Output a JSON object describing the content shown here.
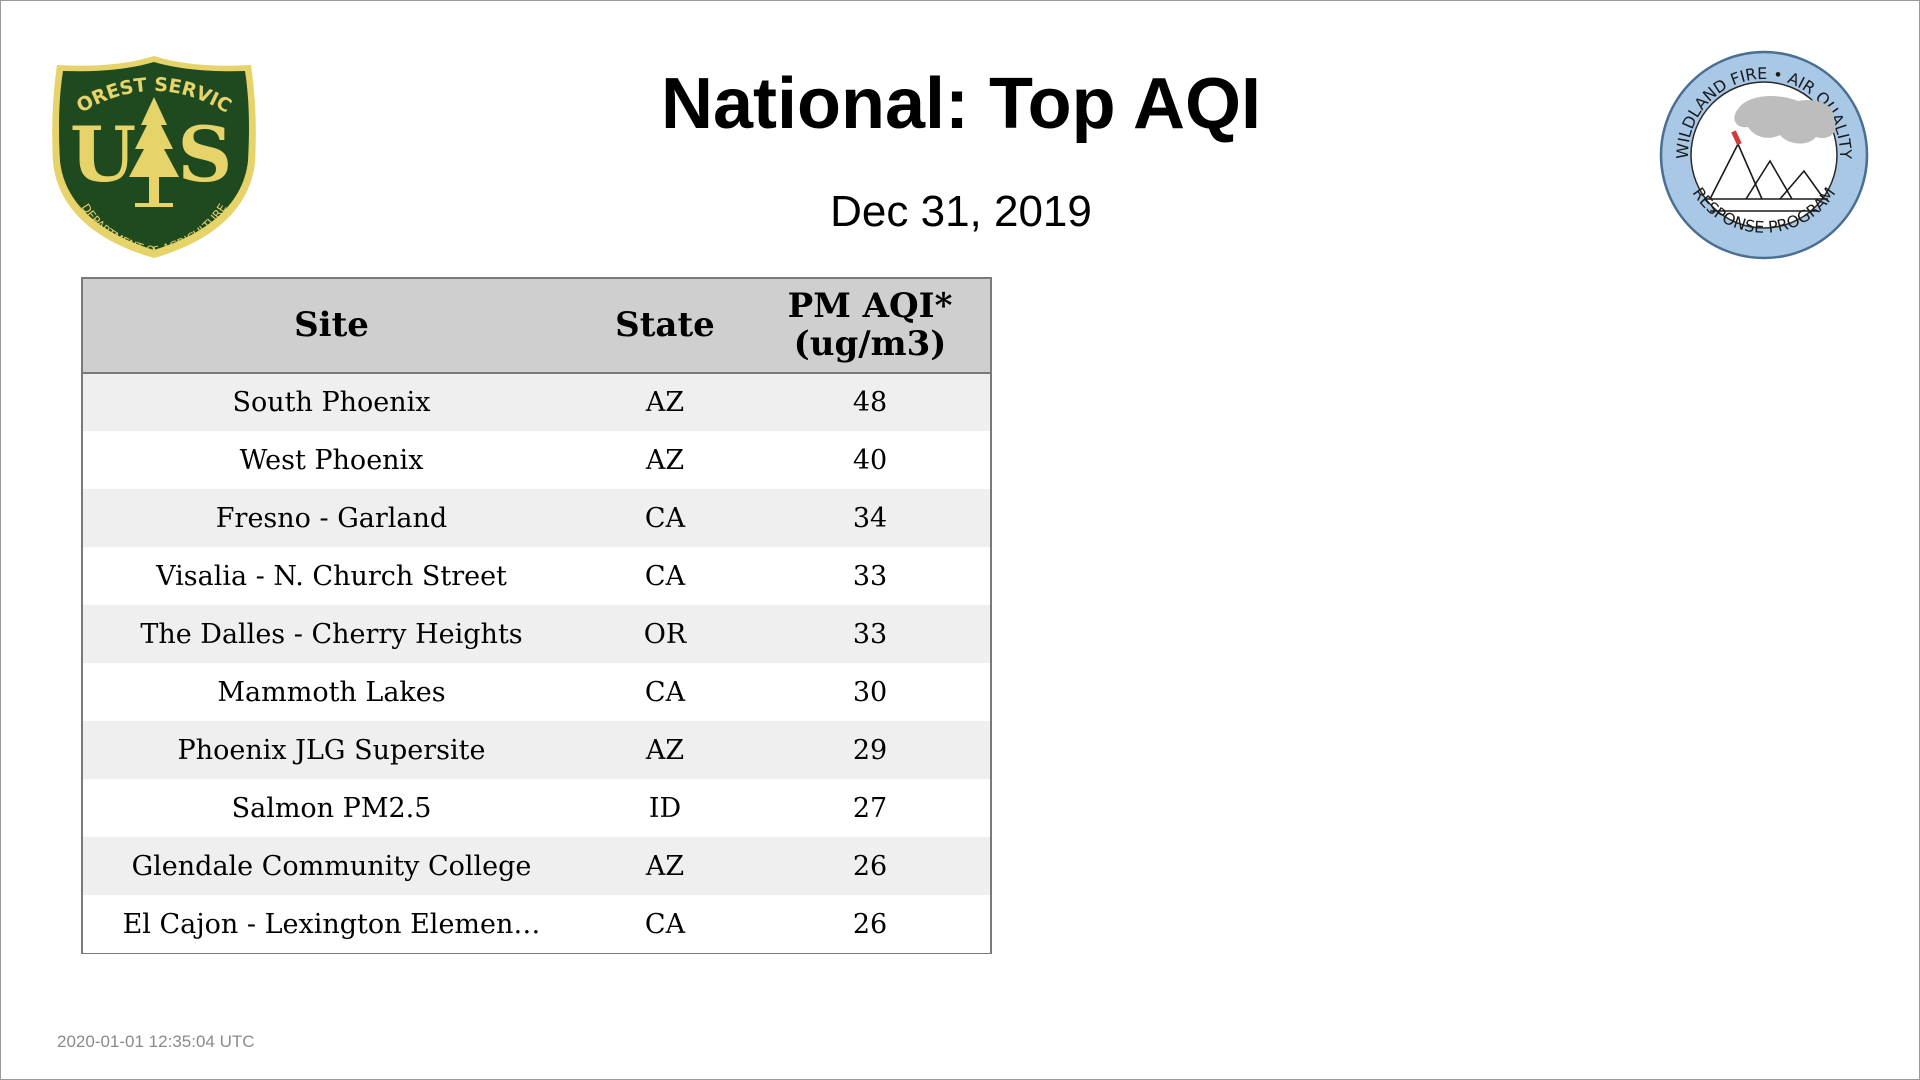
{
  "header": {
    "title": "National: Top AQI",
    "date": "Dec 31, 2019"
  },
  "logos": {
    "left": {
      "top_text": "FOREST SERVICE",
      "letters": [
        "U",
        "S"
      ],
      "bottom_text": "DEPARTMENT OF AGRICULTURE",
      "colors": {
        "shield": "#1f4a1f",
        "gold": "#e6d36a"
      }
    },
    "right": {
      "top_text": "WILDLAND FIRE • AIR QUALITY",
      "bottom_text": "RESPONSE PROGRAM",
      "colors": {
        "ring": "#a9c8e6",
        "smoke": "#bdbdbd",
        "flag": "#d43a3a"
      }
    }
  },
  "table": {
    "columns": [
      "Site",
      "State",
      "PM AQI*",
      "(ug/m3)"
    ],
    "rows": [
      {
        "site": "South Phoenix",
        "state": "AZ",
        "aqi": "48"
      },
      {
        "site": "West Phoenix",
        "state": "AZ",
        "aqi": "40"
      },
      {
        "site": "Fresno - Garland",
        "state": "CA",
        "aqi": "34"
      },
      {
        "site": "Visalia - N. Church Street",
        "state": "CA",
        "aqi": "33"
      },
      {
        "site": "The Dalles - Cherry Heights",
        "state": "OR",
        "aqi": "33"
      },
      {
        "site": "Mammoth Lakes",
        "state": "CA",
        "aqi": "30"
      },
      {
        "site": "Phoenix JLG Supersite",
        "state": "AZ",
        "aqi": "29"
      },
      {
        "site": "Salmon PM2.5",
        "state": "ID",
        "aqi": "27"
      },
      {
        "site": "Glendale Community College",
        "state": "AZ",
        "aqi": "26"
      },
      {
        "site": "El Cajon - Lexington Elemen…",
        "state": "CA",
        "aqi": "26"
      }
    ]
  },
  "footer": {
    "timestamp": "2020-01-01 12:35:04 UTC"
  }
}
